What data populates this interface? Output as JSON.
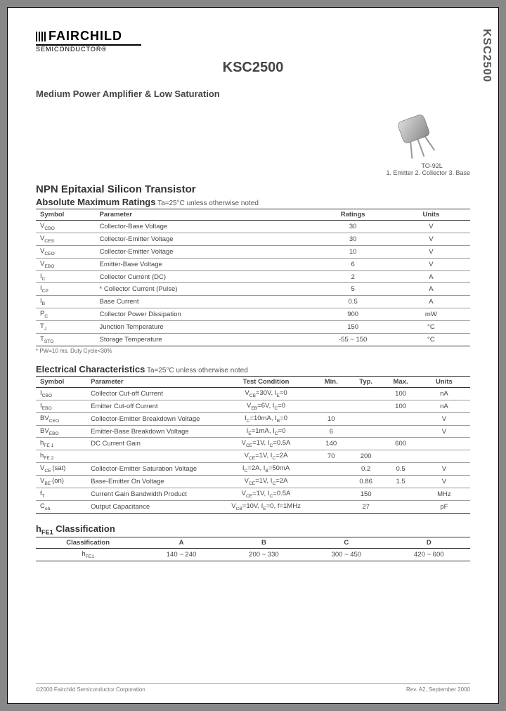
{
  "sideLabel": "KSC2500",
  "logo": {
    "name": "FAIRCHILD",
    "sub": "SEMICONDUCTOR®"
  },
  "title": "KSC2500",
  "subtitle": "Medium Power Amplifier & Low Saturation",
  "package": {
    "name": "TO-92L",
    "pins": "1. Emitter 2. Collector 3. Base"
  },
  "sectionTransistor": "NPN Epitaxial Silicon Transistor",
  "amr": {
    "heading": "Absolute Maximum Ratings",
    "condition": " Ta=25°C unless otherwise noted",
    "columns": [
      "Symbol",
      "Parameter",
      "Ratings",
      "Units"
    ],
    "rows": [
      {
        "sym": "V_CBO",
        "param": "Collector-Base Voltage",
        "rating": "30",
        "unit": "V"
      },
      {
        "sym": "V_CES",
        "param": "Collector-Emitter Voltage",
        "rating": "30",
        "unit": "V"
      },
      {
        "sym": "V_CEO",
        "param": "Collector-Emitter Voltage",
        "rating": "10",
        "unit": "V"
      },
      {
        "sym": "V_EBO",
        "param": "Emitter-Base Voltage",
        "rating": "6",
        "unit": "V"
      },
      {
        "sym": "I_C",
        "param": "Collector Current (DC)",
        "rating": "2",
        "unit": "A"
      },
      {
        "sym": "I_CP",
        "param": "* Collector Current (Pulse)",
        "rating": "5",
        "unit": "A"
      },
      {
        "sym": "I_B",
        "param": "Base Current",
        "rating": "0.5",
        "unit": "A"
      },
      {
        "sym": "P_C",
        "param": "Collector Power Dissipation",
        "rating": "900",
        "unit": "mW"
      },
      {
        "sym": "T_J",
        "param": "Junction Temperature",
        "rating": "150",
        "unit": "°C"
      },
      {
        "sym": "T_STG",
        "param": "Storage Temperature",
        "rating": "-55 ~ 150",
        "unit": "°C"
      }
    ],
    "footnote": "* PW=10 ms, Duty Cycle<30%"
  },
  "ec": {
    "heading": "Electrical Characteristics",
    "condition": " Ta=25°C unless otherwise noted",
    "columns": [
      "Symbol",
      "Parameter",
      "Test Condition",
      "Min.",
      "Typ.",
      "Max.",
      "Units"
    ],
    "rows": [
      {
        "sym": "I_CBO",
        "param": "Collector Cut-off Current",
        "cond": "V_CB=30V, I_E=0",
        "min": "",
        "typ": "",
        "max": "100",
        "unit": "nA"
      },
      {
        "sym": "I_EBO",
        "param": "Emitter Cut-off Current",
        "cond": "V_EB=6V, I_C=0",
        "min": "",
        "typ": "",
        "max": "100",
        "unit": "nA"
      },
      {
        "sym": "BV_CEO",
        "param": "Collector-Emitter Breakdown Voltage",
        "cond": "I_C=10mA, I_B=0",
        "min": "10",
        "typ": "",
        "max": "",
        "unit": "V"
      },
      {
        "sym": "BV_EBO",
        "param": "Emitter-Base Breakdown Voltage",
        "cond": "I_E=1mA, I_C=0",
        "min": "6",
        "typ": "",
        "max": "",
        "unit": "V"
      },
      {
        "sym": "h_FE 1",
        "param": "DC Current Gain",
        "cond": "V_CE=1V, I_C=0.5A",
        "min": "140",
        "typ": "",
        "max": "600",
        "unit": ""
      },
      {
        "sym": "h_FE 2",
        "param": "",
        "cond": "V_CE=1V, I_C=2A",
        "min": "70",
        "typ": "200",
        "max": "",
        "unit": ""
      },
      {
        "sym": "V_CE (sat)",
        "param": "Collector-Emitter Saturation Voltage",
        "cond": "I_C=2A, I_B=50mA",
        "min": "",
        "typ": "0.2",
        "max": "0.5",
        "unit": "V"
      },
      {
        "sym": "V_BE (on)",
        "param": "Base-Emitter On Voltage",
        "cond": "V_CE=1V, I_C=2A",
        "min": "",
        "typ": "0.86",
        "max": "1.5",
        "unit": "V"
      },
      {
        "sym": "f_T",
        "param": "Current Gain Bandwidth Product",
        "cond": "V_CE=1V, I_C=0.5A",
        "min": "",
        "typ": "150",
        "max": "",
        "unit": "MHz"
      },
      {
        "sym": "C_ob",
        "param": "Output Capacitance",
        "cond": "V_CB=10V, I_E=0, f=1MHz",
        "min": "",
        "typ": "27",
        "max": "",
        "unit": "pF"
      }
    ]
  },
  "hfe": {
    "heading": "h_FE1 Classification",
    "columns": [
      "Classification",
      "A",
      "B",
      "C",
      "D"
    ],
    "row": {
      "label": "h_FE1",
      "A": "140 ~ 240",
      "B": "200 ~ 330",
      "C": "300 ~ 450",
      "D": "420 ~ 600"
    }
  },
  "footer": {
    "left": "©2000 Fairchild Semiconductor Corporation",
    "right": "Rev. A2, September 2000"
  }
}
